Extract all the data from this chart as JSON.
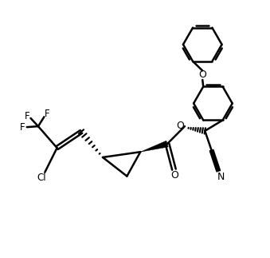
{
  "bg_color": "#ffffff",
  "line_color": "#000000",
  "line_width": 1.8,
  "font_size": 8.5,
  "figsize": [
    3.39,
    3.23
  ],
  "dpi": 100,
  "xlim": [
    0,
    10
  ],
  "ylim": [
    0,
    9.5
  ]
}
